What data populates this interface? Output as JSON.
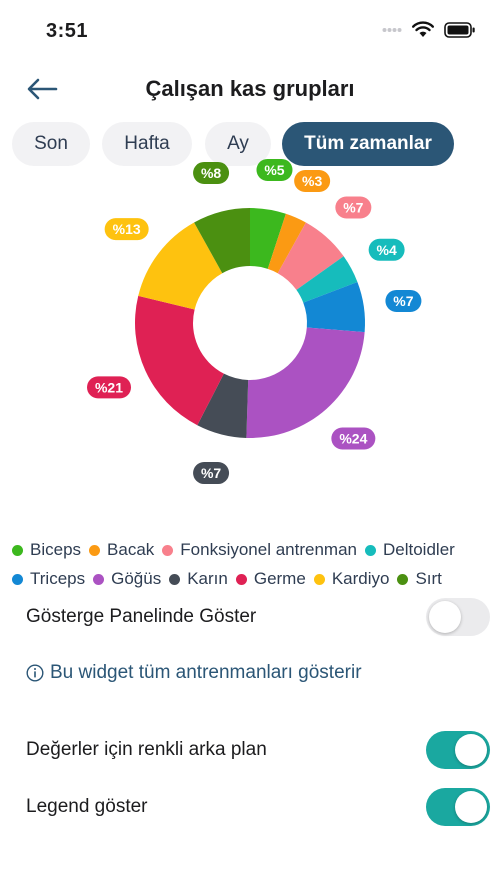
{
  "status_bar": {
    "time": "3:51"
  },
  "header": {
    "title": "Çalışan kas grupları"
  },
  "tabs": [
    {
      "label": "Son",
      "active": false
    },
    {
      "label": "Hafta",
      "active": false
    },
    {
      "label": "Ay",
      "active": false
    },
    {
      "label": "Tüm zamanlar",
      "active": true
    }
  ],
  "chart_data": {
    "type": "pie",
    "variant": "donut",
    "series": [
      {
        "name": "Biceps",
        "value": 5,
        "label": "%5",
        "color": "#3cb81e"
      },
      {
        "name": "Bacak",
        "value": 3,
        "label": "%3",
        "color": "#fb9a13"
      },
      {
        "name": "Fonksiyonel antrenman",
        "value": 7,
        "label": "%7",
        "color": "#f8808c"
      },
      {
        "name": "Deltoidler",
        "value": 4,
        "label": "%4",
        "color": "#16bcbc"
      },
      {
        "name": "Triceps",
        "value": 7,
        "label": "%7",
        "color": "#1388d4"
      },
      {
        "name": "Göğüs",
        "value": 24,
        "label": "%24",
        "color": "#ab52c2"
      },
      {
        "name": "Karın",
        "value": 7,
        "label": "%7",
        "color": "#454c56"
      },
      {
        "name": "Germe",
        "value": 21,
        "label": "%21",
        "color": "#df2154"
      },
      {
        "name": "Kardiyo",
        "value": 13,
        "label": "%13",
        "color": "#fec20f"
      },
      {
        "name": "Sırt",
        "value": 8,
        "label": "%8",
        "color": "#4b9011"
      }
    ]
  },
  "settings": {
    "dashboard_label": "Gösterge Panelinde Göster",
    "dashboard_on": false,
    "info_text": "Bu widget tüm antrenmanları gösterir",
    "info_icon": "info-circle-icon",
    "colored_bg_label": "Değerler için renkli arka plan",
    "colored_bg_on": true,
    "legend_label": "Legend göster",
    "legend_on": true
  }
}
